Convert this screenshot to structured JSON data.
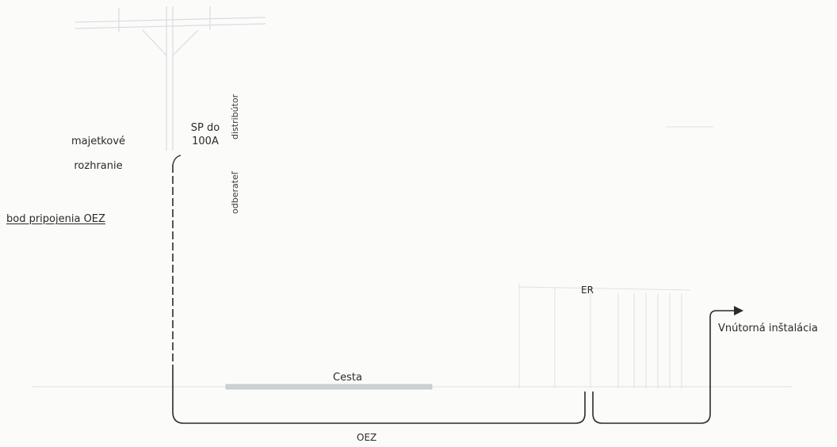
{
  "labels": {
    "majetkove": "majetkové",
    "rozhranie": "rozhranie",
    "bod_pripojenia": "bod pripojenia OEZ",
    "sp_line1": "SP do",
    "sp_line2": "100A",
    "distributor": "distribútor",
    "odberatel": "odberateľ",
    "er": "ER",
    "vnutorna": "Vnútorná inštalácia",
    "cesta": "Cesta",
    "oez": "OEZ"
  },
  "colors": {
    "line": "#2a2a2a",
    "faint_sketch": "#d9dcdf",
    "road": "#c9cdcf"
  }
}
